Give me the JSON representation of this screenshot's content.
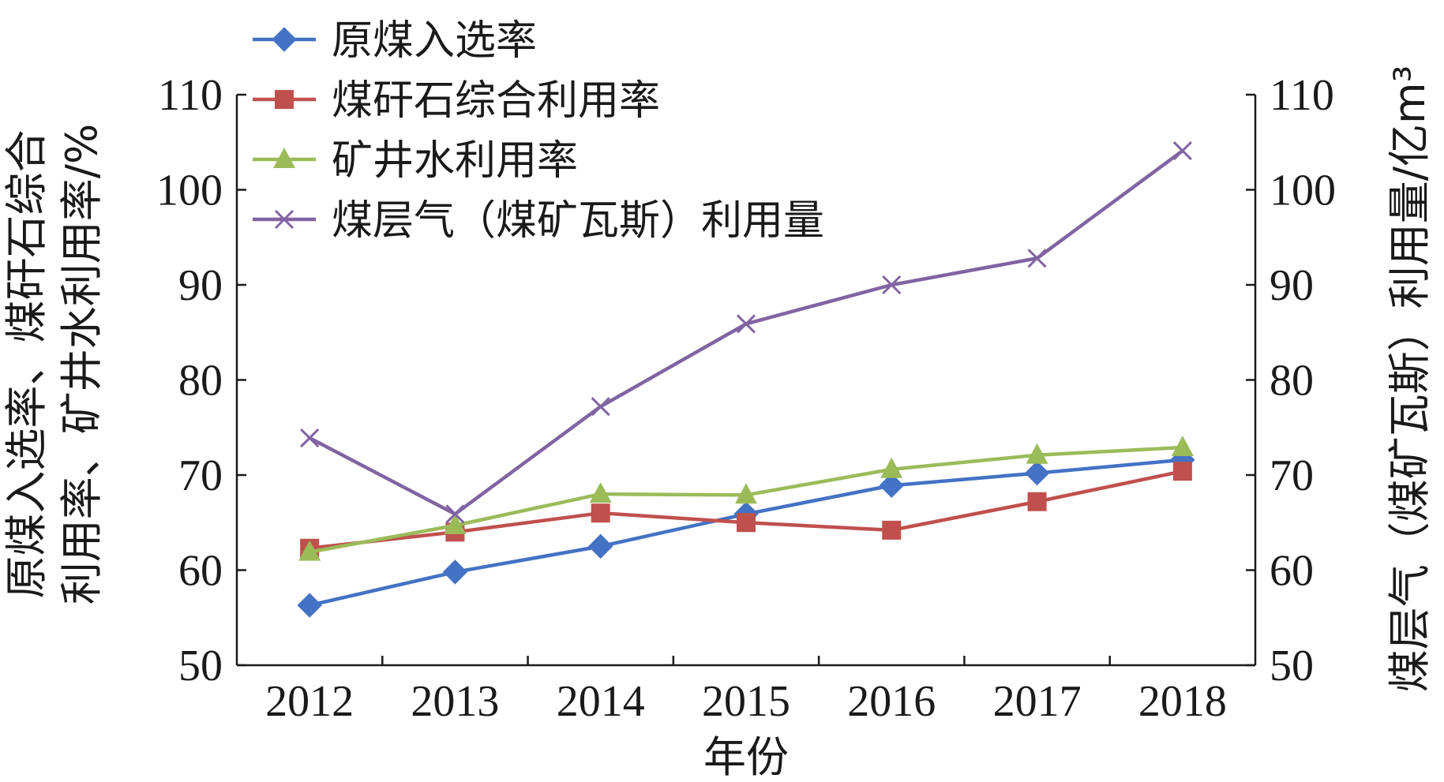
{
  "chart_data": {
    "type": "line",
    "categories": [
      "2012",
      "2013",
      "2014",
      "2015",
      "2016",
      "2017",
      "2018"
    ],
    "xlabel": "年份",
    "ylabel_left": [
      "原煤入选率、煤矸石综合",
      "利用率、矿井水利用率/%"
    ],
    "ylabel_right": "煤层气（煤矿瓦斯）利用量/亿m³",
    "ylim": [
      50,
      110
    ],
    "yticks": [
      50,
      60,
      70,
      80,
      90,
      100,
      110
    ],
    "y2lim": [
      50,
      110
    ],
    "y2ticks": [
      50,
      60,
      70,
      80,
      90,
      100,
      110
    ],
    "grid": false,
    "legend_position": "top-left",
    "series": [
      {
        "name": "原煤入选率",
        "axis": "left",
        "marker": "diamond",
        "color": "#4472C4",
        "values": [
          56.3,
          59.8,
          62.5,
          65.9,
          68.9,
          70.2,
          71.6
        ]
      },
      {
        "name": "煤矸石综合利用率",
        "axis": "left",
        "marker": "square",
        "color": "#C0504D",
        "values": [
          62.3,
          64.0,
          66.0,
          65.0,
          64.2,
          67.2,
          70.4
        ]
      },
      {
        "name": "矿井水利用率",
        "axis": "left",
        "marker": "triangle",
        "color": "#9BBB59",
        "values": [
          61.9,
          64.7,
          68.0,
          67.9,
          70.6,
          72.1,
          72.9
        ]
      },
      {
        "name": "煤层气（煤矿瓦斯）利用量",
        "axis": "right",
        "marker": "x",
        "color": "#8064A2",
        "values": [
          73.9,
          65.9,
          77.2,
          85.9,
          90.0,
          92.8,
          104.1
        ]
      }
    ]
  }
}
